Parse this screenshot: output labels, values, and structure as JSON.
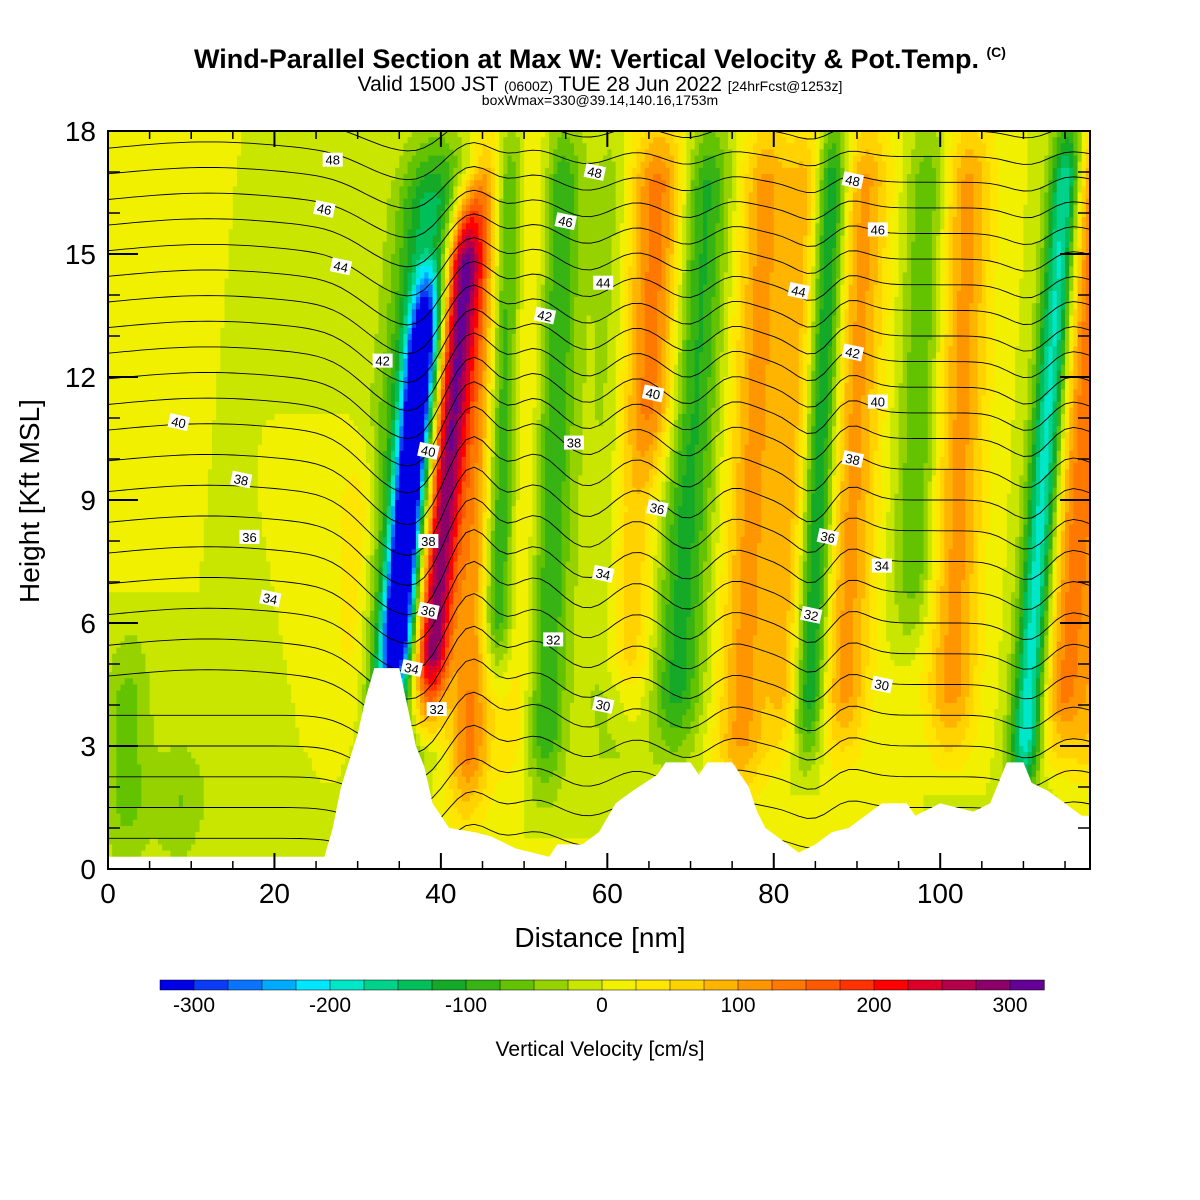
{
  "title": "Wind-Parallel Section at Max W: Vertical Velocity & Pot.Temp.",
  "title_mark": "(C)",
  "subtitle_pre": "Valid 1500 JST",
  "subtitle_utc": "(0600Z)",
  "subtitle_date": "TUE 28 Jun 2022",
  "subtitle_fcst": "[24hrFcst@1253z]",
  "subtitle2": "boxWmax=330@39.14,140.16,1753m",
  "chart_data": {
    "type": "heatmap",
    "xlabel": "Distance [nm]",
    "ylabel": "Height [Kft MSL]",
    "xlim": [
      0,
      118
    ],
    "ylim": [
      0,
      18
    ],
    "x_ticks": [
      0,
      20,
      40,
      60,
      80,
      100
    ],
    "y_ticks": [
      0,
      3,
      6,
      9,
      12,
      15,
      18
    ],
    "colorbar": {
      "label": "Vertical Velocity [cm/s]",
      "range": [
        -325,
        325
      ],
      "tick_values": [
        -300,
        -200,
        -100,
        0,
        100,
        200,
        300
      ],
      "tick_labels": [
        "-300",
        "-200",
        "-100",
        "0",
        "100",
        "200",
        "300"
      ],
      "colors": [
        "#0000e6",
        "#0a3cf5",
        "#0a73ff",
        "#00aaff",
        "#00e6ff",
        "#00e6c8",
        "#00d28c",
        "#00be5a",
        "#14aa28",
        "#37b414",
        "#64c300",
        "#96d200",
        "#c8e600",
        "#f0f000",
        "#ffe600",
        "#ffd200",
        "#ffb400",
        "#ff9600",
        "#ff7800",
        "#ff5a00",
        "#ff3200",
        "#ff0000",
        "#dc0028",
        "#b4004b",
        "#8c0069",
        "#640096"
      ]
    },
    "theta_label_values": [
      30,
      32,
      34,
      36,
      38,
      40,
      42,
      44,
      46,
      48
    ],
    "theta_labels": [
      {
        "text": "48",
        "x": 27,
        "y": 17.3
      },
      {
        "text": "46",
        "x": 26,
        "y": 16.1
      },
      {
        "text": "44",
        "x": 28,
        "y": 14.7
      },
      {
        "text": "42",
        "x": 33,
        "y": 12.4
      },
      {
        "text": "40",
        "x": 8.5,
        "y": 10.9
      },
      {
        "text": "38",
        "x": 16,
        "y": 9.5
      },
      {
        "text": "36",
        "x": 17,
        "y": 8.1
      },
      {
        "text": "34",
        "x": 19.5,
        "y": 6.6
      },
      {
        "text": "40",
        "x": 38.5,
        "y": 10.2
      },
      {
        "text": "38",
        "x": 38.5,
        "y": 8.0
      },
      {
        "text": "36",
        "x": 38.5,
        "y": 6.3
      },
      {
        "text": "34",
        "x": 36.5,
        "y": 4.9
      },
      {
        "text": "32",
        "x": 39.5,
        "y": 3.9
      },
      {
        "text": "48",
        "x": 58.5,
        "y": 17.0
      },
      {
        "text": "46",
        "x": 55,
        "y": 15.8
      },
      {
        "text": "44",
        "x": 59.5,
        "y": 14.3
      },
      {
        "text": "42",
        "x": 52.5,
        "y": 13.5
      },
      {
        "text": "40",
        "x": 65.5,
        "y": 11.6
      },
      {
        "text": "38",
        "x": 56,
        "y": 10.4
      },
      {
        "text": "36",
        "x": 66,
        "y": 8.8
      },
      {
        "text": "34",
        "x": 59.5,
        "y": 7.2
      },
      {
        "text": "32",
        "x": 53.5,
        "y": 5.6
      },
      {
        "text": "30",
        "x": 59.5,
        "y": 4.0
      },
      {
        "text": "48",
        "x": 89.5,
        "y": 16.8
      },
      {
        "text": "46",
        "x": 92.5,
        "y": 15.6
      },
      {
        "text": "44",
        "x": 83,
        "y": 14.1
      },
      {
        "text": "42",
        "x": 89.5,
        "y": 12.6
      },
      {
        "text": "40",
        "x": 92.5,
        "y": 11.4
      },
      {
        "text": "38",
        "x": 89.5,
        "y": 10.0
      },
      {
        "text": "36",
        "x": 86.5,
        "y": 8.1
      },
      {
        "text": "34",
        "x": 93,
        "y": 7.4
      },
      {
        "text": "32",
        "x": 84.5,
        "y": 6.2
      },
      {
        "text": "30",
        "x": 93,
        "y": 4.5
      }
    ],
    "terrain": [
      [
        0,
        0.3
      ],
      [
        26,
        0.3
      ],
      [
        27,
        1.0
      ],
      [
        28,
        2.0
      ],
      [
        30,
        3.3
      ],
      [
        31,
        4.2
      ],
      [
        32,
        4.9
      ],
      [
        35,
        4.9
      ],
      [
        37,
        3.0
      ],
      [
        38,
        2.5
      ],
      [
        39,
        1.6
      ],
      [
        41,
        1.0
      ],
      [
        44,
        0.9
      ],
      [
        46,
        0.8
      ],
      [
        49,
        0.5
      ],
      [
        53,
        0.3
      ],
      [
        54,
        0.6
      ],
      [
        57,
        0.6
      ],
      [
        59,
        0.9
      ],
      [
        61,
        1.6
      ],
      [
        63,
        1.9
      ],
      [
        66,
        2.3
      ],
      [
        67,
        2.6
      ],
      [
        70,
        2.6
      ],
      [
        71,
        2.3
      ],
      [
        72,
        2.6
      ],
      [
        75,
        2.6
      ],
      [
        77,
        2.0
      ],
      [
        78,
        1.4
      ],
      [
        79,
        1.0
      ],
      [
        81,
        0.7
      ],
      [
        83,
        0.4
      ],
      [
        85,
        0.6
      ],
      [
        87,
        0.9
      ],
      [
        89,
        1.0
      ],
      [
        91,
        1.3
      ],
      [
        93,
        1.6
      ],
      [
        96,
        1.6
      ],
      [
        97,
        1.3
      ],
      [
        100,
        1.6
      ],
      [
        104,
        1.4
      ],
      [
        106,
        1.6
      ],
      [
        107,
        2.1
      ],
      [
        108,
        2.6
      ],
      [
        110,
        2.6
      ],
      [
        111,
        2.1
      ],
      [
        113,
        1.9
      ],
      [
        115,
        1.6
      ],
      [
        117,
        1.3
      ],
      [
        118,
        1.3
      ]
    ]
  }
}
